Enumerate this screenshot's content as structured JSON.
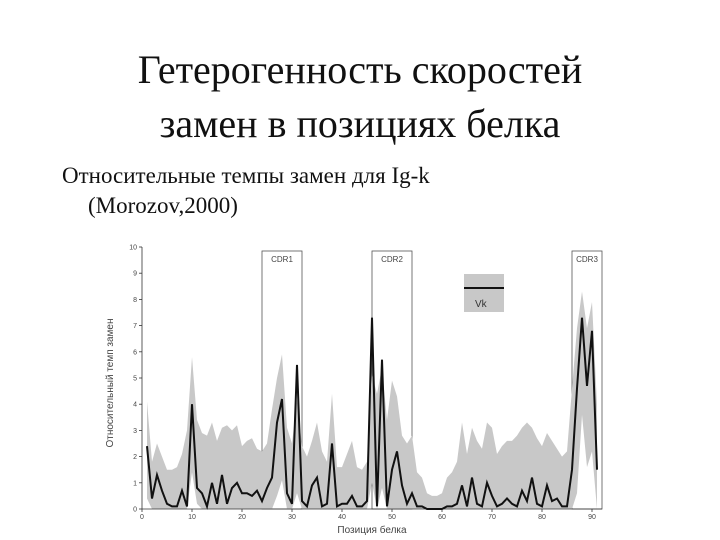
{
  "slide": {
    "title_line1": "Гетерогенность скоростей",
    "title_line2": "замен в позициях белка",
    "subtitle_line1": "Относительные темпы замен для Ig-k",
    "subtitle_line2": "(Morozov,2000)"
  },
  "chart_data": {
    "type": "line",
    "xlabel": "Позиция белка",
    "ylabel": "Относительный темп замен",
    "xlim": [
      0,
      92
    ],
    "ylim": [
      0,
      10
    ],
    "xticks": [
      0,
      10,
      20,
      30,
      40,
      50,
      60,
      70,
      80,
      90
    ],
    "yticks": [
      0,
      1,
      2,
      3,
      4,
      5,
      6,
      7,
      8,
      9,
      10
    ],
    "grid": false,
    "legend": {
      "position": "upper-right",
      "label": "Vk"
    },
    "regions": [
      {
        "label": "CDR1",
        "x": [
          24,
          32
        ]
      },
      {
        "label": "CDR2",
        "x": [
          46,
          54
        ]
      },
      {
        "label": "CDR3",
        "x": [
          86,
          92
        ]
      }
    ],
    "series": [
      {
        "name": "Vk",
        "x": [
          1,
          2,
          3,
          4,
          5,
          6,
          7,
          8,
          9,
          10,
          11,
          12,
          13,
          14,
          15,
          16,
          17,
          18,
          19,
          20,
          21,
          22,
          23,
          24,
          25,
          26,
          27,
          28,
          29,
          30,
          31,
          32,
          33,
          34,
          35,
          36,
          37,
          38,
          39,
          40,
          41,
          42,
          43,
          44,
          45,
          46,
          47,
          48,
          49,
          50,
          51,
          52,
          53,
          54,
          55,
          56,
          57,
          58,
          59,
          60,
          61,
          62,
          63,
          64,
          65,
          66,
          67,
          68,
          69,
          70,
          71,
          72,
          73,
          74,
          75,
          76,
          77,
          78,
          79,
          80,
          81,
          82,
          83,
          84,
          85,
          86,
          87,
          88,
          89,
          90,
          91
        ],
        "values": [
          2.4,
          0.4,
          1.3,
          0.7,
          0.2,
          0.1,
          0.1,
          0.7,
          0.1,
          4.0,
          0.8,
          0.6,
          0.1,
          1.0,
          0.2,
          1.3,
          0.2,
          0.8,
          1.0,
          0.6,
          0.6,
          0.5,
          0.7,
          0.3,
          0.8,
          1.2,
          3.3,
          4.2,
          0.6,
          0.2,
          5.5,
          0.3,
          0.1,
          0.9,
          1.2,
          0.1,
          0.2,
          2.5,
          0.1,
          0.2,
          0.2,
          0.5,
          0.1,
          0.1,
          0.3,
          7.3,
          0.1,
          5.7,
          0.1,
          1.5,
          2.2,
          0.9,
          0.2,
          0.6,
          0.1,
          0.1,
          0.0,
          0.0,
          0.0,
          0.0,
          0.1,
          0.1,
          0.2,
          0.9,
          0.1,
          1.2,
          0.2,
          0.1,
          1.0,
          0.5,
          0.1,
          0.2,
          0.4,
          0.2,
          0.1,
          0.7,
          0.3,
          1.2,
          0.2,
          0.1,
          0.9,
          0.3,
          0.4,
          0.1,
          0.1,
          1.5,
          4.6,
          7.3,
          4.7,
          6.8,
          1.5
        ],
        "upper": [
          4.1,
          1.8,
          2.5,
          2.0,
          1.5,
          1.5,
          1.6,
          2.1,
          3.0,
          5.8,
          3.4,
          2.9,
          2.8,
          3.3,
          2.6,
          3.1,
          3.2,
          3.0,
          3.2,
          2.4,
          2.6,
          2.7,
          2.3,
          2.2,
          2.5,
          3.8,
          5.0,
          5.9,
          3.1,
          2.5,
          4.2,
          2.4,
          2.0,
          2.6,
          3.3,
          2.2,
          1.8,
          4.4,
          1.6,
          1.6,
          2.1,
          2.6,
          1.6,
          1.5,
          1.8,
          5.1,
          4.4,
          5.4,
          3.4,
          4.9,
          4.3,
          2.8,
          2.5,
          2.8,
          1.4,
          1.2,
          0.6,
          0.5,
          0.5,
          0.6,
          1.2,
          1.4,
          1.8,
          3.3,
          2.1,
          3.1,
          2.6,
          2.3,
          3.3,
          3.1,
          2.1,
          2.4,
          2.6,
          2.6,
          2.8,
          3.1,
          3.3,
          3.1,
          2.7,
          2.4,
          2.9,
          2.6,
          2.3,
          2.0,
          2.2,
          4.6,
          6.9,
          8.3,
          6.9,
          7.9,
          4.0
        ],
        "lower": [
          0.4,
          0.0,
          0.0,
          0.0,
          0.0,
          0.0,
          0.0,
          0.0,
          0.0,
          1.4,
          0.2,
          0.0,
          0.0,
          0.0,
          0.0,
          0.0,
          0.0,
          0.0,
          0.0,
          0.0,
          0.0,
          0.0,
          0.0,
          0.0,
          0.0,
          0.0,
          0.5,
          1.1,
          0.0,
          0.0,
          0.6,
          0.0,
          0.0,
          0.0,
          0.0,
          0.0,
          0.0,
          0.0,
          0.0,
          0.0,
          0.0,
          0.0,
          0.0,
          0.0,
          0.0,
          1.0,
          0.0,
          0.8,
          0.0,
          0.0,
          0.0,
          0.0,
          0.0,
          0.0,
          0.0,
          0.0,
          0.0,
          0.0,
          0.0,
          0.0,
          0.0,
          0.0,
          0.0,
          0.0,
          0.0,
          0.0,
          0.0,
          0.0,
          0.0,
          0.0,
          0.0,
          0.0,
          0.0,
          0.0,
          0.0,
          0.0,
          0.0,
          0.0,
          0.0,
          0.0,
          0.0,
          0.0,
          0.0,
          0.0,
          0.0,
          0.0,
          0.6,
          3.6,
          1.6,
          2.2,
          0.0
        ]
      }
    ]
  }
}
